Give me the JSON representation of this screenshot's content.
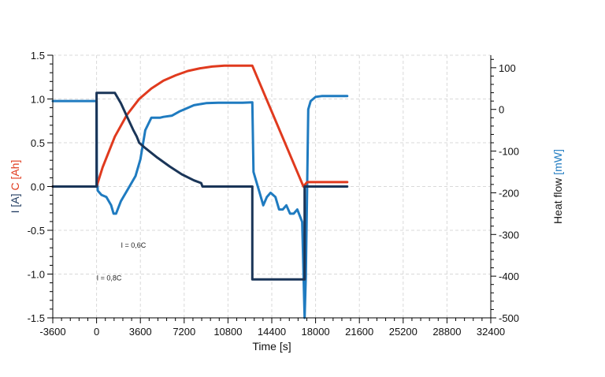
{
  "chart_data": {
    "type": "line",
    "xlabel": "Time [s]",
    "ylabel_left_parts": [
      {
        "text": "I [A]",
        "color": "#1f3a5f"
      },
      {
        "text": " C [Ah]",
        "color": "#e03a1e"
      }
    ],
    "ylabel_right_parts": [
      {
        "text": "Heat flow ",
        "color": "#1a1a1a"
      },
      {
        "text": "[mW]",
        "color": "#1f7bc0"
      }
    ],
    "xlim": [
      -3600,
      32400
    ],
    "xticks": [
      -3600,
      0,
      3600,
      7200,
      10800,
      14400,
      18000,
      21600,
      25200,
      28800,
      32400
    ],
    "ylim_left": [
      -1.5,
      1.5
    ],
    "yticks_left": [
      "1.5",
      "1.0",
      "0.5",
      "0.0",
      "-0.5",
      "-1.0",
      "-1.5"
    ],
    "ylim_right": [
      -500,
      130
    ],
    "yticks_right": [
      "100",
      "0",
      "-100",
      "-200",
      "-300",
      "-400",
      "-500"
    ],
    "grid": true,
    "annotations": [
      {
        "text": "I = 0,6C",
        "x": 2000,
        "y": -0.7
      },
      {
        "text": "I = 0,8C",
        "x": 0,
        "y": -1.07
      }
    ],
    "series": [
      {
        "axis": "right",
        "color": "#1f7bc0",
        "x": [
          -3600,
          0,
          20,
          100,
          400,
          800,
          1200,
          1400,
          1600,
          2000,
          2600,
          3200,
          3600,
          4000,
          4500,
          5000,
          5200,
          5500,
          6200,
          6800,
          7200,
          8000,
          9000,
          10000,
          11000,
          12000,
          12800,
          12900,
          13100,
          13400,
          13700,
          14000,
          14300,
          14700,
          15000,
          15300,
          15600,
          15900,
          16200,
          16500,
          16900,
          17100,
          17200,
          17300,
          17400,
          17600,
          18000,
          18500,
          19500,
          20600
        ],
        "y": [
          20,
          20,
          -150,
          -195,
          -205,
          -210,
          -230,
          -250,
          -250,
          -220,
          -190,
          -160,
          -120,
          -50,
          -20,
          -20,
          -20,
          -18,
          -15,
          -5,
          0,
          10,
          15,
          16,
          16,
          16,
          17,
          -150,
          -170,
          -200,
          -230,
          -210,
          -200,
          -210,
          -240,
          -240,
          -230,
          -250,
          -250,
          -240,
          -270,
          -500,
          -400,
          -200,
          0,
          20,
          30,
          32,
          32,
          32
        ]
      },
      {
        "axis": "left",
        "color": "#e03a1e",
        "x": [
          -3600,
          0,
          500,
          1500,
          2500,
          3500,
          4500,
          5500,
          6500,
          7500,
          8500,
          9500,
          10500,
          11500,
          12500,
          12800,
          17000,
          17300,
          20600
        ],
        "y": [
          0,
          0,
          0.22,
          0.57,
          0.82,
          1.0,
          1.12,
          1.21,
          1.27,
          1.32,
          1.35,
          1.37,
          1.38,
          1.38,
          1.38,
          1.38,
          0.0,
          0.05,
          0.05
        ]
      },
      {
        "axis": "left",
        "color": "#1a3558",
        "x": [
          -3600,
          0,
          1,
          1500,
          2000,
          2500,
          3000,
          3300,
          3500,
          4000,
          5000,
          6000,
          7000,
          8000,
          8600,
          8700,
          12800,
          12801,
          17100,
          17101,
          20600
        ],
        "y": [
          0,
          0,
          1.07,
          1.07,
          0.95,
          0.8,
          0.65,
          0.57,
          0.5,
          0.44,
          0.33,
          0.23,
          0.14,
          0.07,
          0.04,
          0.0,
          0.0,
          -1.06,
          -1.06,
          0.0,
          0.0
        ]
      }
    ]
  }
}
